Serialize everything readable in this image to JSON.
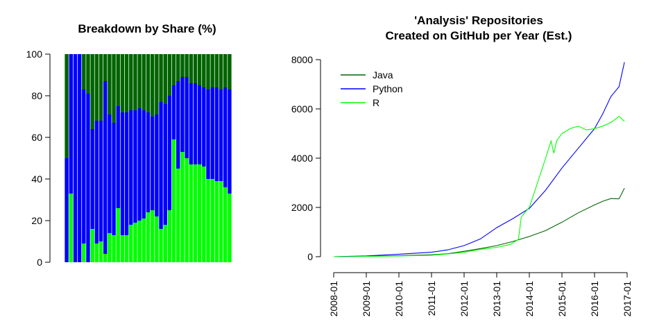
{
  "chart_data": [
    {
      "type": "bar",
      "stacked": true,
      "title": "Breakdown by Share (%)",
      "ylim": [
        0,
        100
      ],
      "yticks": [
        0,
        20,
        40,
        60,
        80,
        100
      ],
      "series": [
        {
          "name": "R",
          "color": "#00ff00",
          "values": [
            0,
            33,
            0,
            0,
            9,
            0,
            16,
            9,
            10,
            4,
            14,
            13,
            26,
            13,
            13,
            18,
            19,
            20,
            21,
            24,
            25,
            22,
            16,
            18,
            25,
            59,
            45,
            53,
            50,
            47,
            47,
            47,
            46,
            40,
            40,
            39,
            39,
            36,
            33
          ]
        },
        {
          "name": "Python",
          "color": "#0000ff",
          "values": [
            50,
            67,
            100,
            100,
            74,
            81,
            48,
            59,
            58,
            83,
            57,
            54,
            49,
            59,
            59,
            55,
            54,
            54,
            52,
            48,
            45,
            49,
            61,
            58,
            55,
            26,
            42,
            36,
            39,
            39,
            39,
            38,
            38,
            43,
            44,
            45,
            44,
            48,
            50
          ]
        },
        {
          "name": "Java",
          "color": "#006400",
          "values": [
            50,
            0,
            0,
            0,
            17,
            19,
            36,
            32,
            32,
            13,
            29,
            33,
            25,
            28,
            28,
            27,
            27,
            26,
            27,
            28,
            30,
            29,
            23,
            24,
            20,
            15,
            13,
            11,
            11,
            14,
            14,
            15,
            16,
            17,
            16,
            16,
            17,
            16,
            17
          ]
        }
      ]
    },
    {
      "type": "line",
      "title": "'Analysis' Repositories",
      "subtitle": "Created on GitHub per Year (Est.)",
      "ylim": [
        0,
        8000
      ],
      "yticks": [
        0,
        2000,
        4000,
        6000,
        8000
      ],
      "xticks": [
        "2008-01",
        "2009-01",
        "2010-01",
        "2011-01",
        "2012-01",
        "2013-01",
        "2014-01",
        "2015-01",
        "2016-01",
        "2017-01"
      ],
      "legend_position": "top-left",
      "series": [
        {
          "name": "Java",
          "color": "#006400",
          "x": [
            "2008-01",
            "2009-01",
            "2010-01",
            "2011-01",
            "2011-07",
            "2012-01",
            "2012-07",
            "2013-01",
            "2013-07",
            "2014-01",
            "2014-07",
            "2015-01",
            "2015-07",
            "2016-01",
            "2016-04",
            "2016-07",
            "2016-10",
            "2016-12"
          ],
          "y": [
            0,
            20,
            40,
            80,
            120,
            220,
            330,
            450,
            620,
            820,
            1060,
            1400,
            1780,
            2100,
            2250,
            2360,
            2350,
            2780
          ]
        },
        {
          "name": "Python",
          "color": "#0000ff",
          "x": [
            "2008-01",
            "2009-01",
            "2010-01",
            "2011-01",
            "2011-07",
            "2012-01",
            "2012-07",
            "2013-01",
            "2013-07",
            "2014-01",
            "2014-07",
            "2015-01",
            "2015-07",
            "2016-01",
            "2016-04",
            "2016-07",
            "2016-10",
            "2016-12"
          ],
          "y": [
            0,
            30,
            100,
            180,
            280,
            450,
            720,
            1180,
            1550,
            1960,
            2700,
            3600,
            4400,
            5200,
            5800,
            6500,
            6900,
            7900
          ]
        },
        {
          "name": "R",
          "color": "#00ff00",
          "x": [
            "2008-01",
            "2009-01",
            "2010-01",
            "2011-01",
            "2011-07",
            "2012-01",
            "2012-07",
            "2013-01",
            "2013-06",
            "2013-09",
            "2013-10",
            "2013-11",
            "2014-01",
            "2014-04",
            "2014-07",
            "2014-09",
            "2014-10",
            "2014-11",
            "2015-01",
            "2015-04",
            "2015-07",
            "2015-10",
            "2016-01",
            "2016-04",
            "2016-07",
            "2016-10",
            "2016-12"
          ],
          "y": [
            0,
            10,
            30,
            60,
            110,
            180,
            300,
            380,
            500,
            700,
            1600,
            1750,
            2000,
            3000,
            4000,
            4700,
            4200,
            4700,
            5000,
            5200,
            5300,
            5150,
            5200,
            5300,
            5450,
            5700,
            5500
          ]
        }
      ]
    }
  ]
}
